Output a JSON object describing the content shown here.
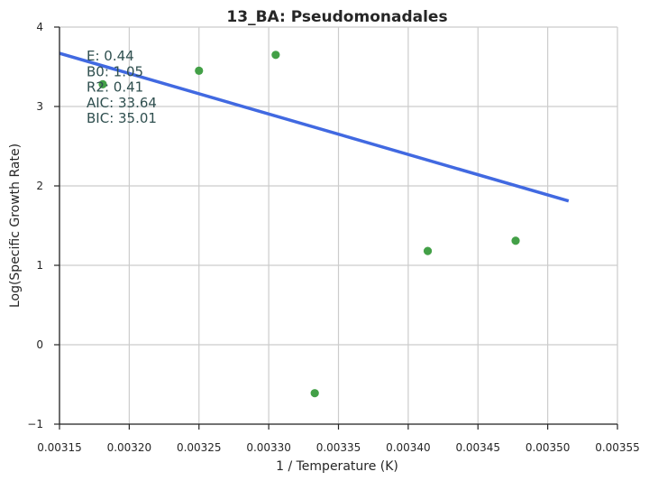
{
  "chart_data": {
    "type": "scatter",
    "title": "13_BA: Pseudomonadales",
    "xlabel": "1 / Temperature (K)",
    "ylabel": "Log(Specific Growth Rate)",
    "xlim": [
      0.00315,
      0.00355
    ],
    "ylim": [
      -1,
      4
    ],
    "x_ticks": [
      "0.00315",
      "0.00320",
      "0.00325",
      "0.00330",
      "0.00335",
      "0.00340",
      "0.00345",
      "0.00350",
      "0.00355"
    ],
    "y_ticks": [
      "−1",
      "0",
      "1",
      "2",
      "3",
      "4"
    ],
    "grid": true,
    "series": [
      {
        "kind": "points",
        "color": "#43a047",
        "x": [
          0.003181,
          0.00325,
          0.003305,
          0.003333,
          0.003414,
          0.003477
        ],
        "y": [
          3.28,
          3.45,
          3.65,
          -0.61,
          1.18,
          1.31
        ]
      },
      {
        "kind": "fit-line",
        "color": "#4169e1",
        "x": [
          0.00315,
          0.003515
        ],
        "y": [
          3.67,
          1.81
        ]
      }
    ],
    "annotations": [
      "E:  0.44",
      "B0:  1.05",
      "R2:  0.41",
      "AIC: 33.64",
      "BIC: 35.01"
    ]
  }
}
